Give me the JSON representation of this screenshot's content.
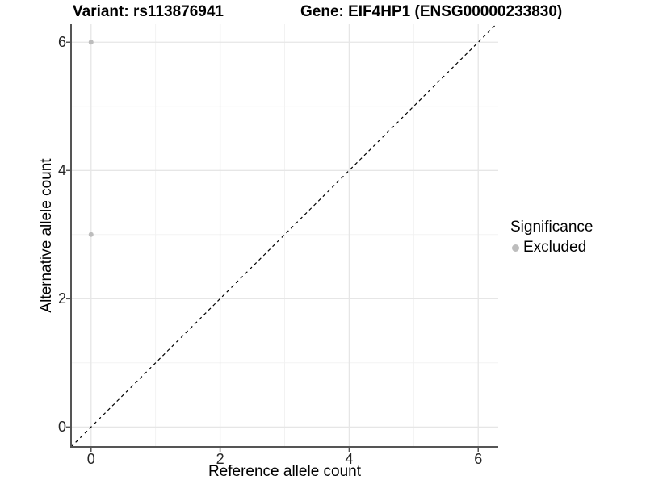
{
  "figure": {
    "title_left": "Variant: rs113876941",
    "title_right": "Gene: EIF4HP1 (ENSG00000233830)"
  },
  "chart_data": {
    "type": "scatter",
    "title": "Variant: rs113876941   Gene: EIF4HP1 (ENSG00000233830)",
    "xlabel": "Reference allele count",
    "ylabel": "Alternative allele count",
    "xlim": [
      -0.31,
      6.31
    ],
    "ylim": [
      -0.31,
      6.28
    ],
    "x_ticks": [
      0,
      2,
      4,
      6
    ],
    "y_ticks": [
      0,
      2,
      4,
      6
    ],
    "x_minor_ticks": [
      1,
      3,
      5
    ],
    "y_minor_ticks": [
      1,
      3,
      5
    ],
    "grid": true,
    "series": [
      {
        "name": "Excluded",
        "color": "#bdbdbd",
        "point_radius": 3,
        "points": [
          {
            "x": 0,
            "y": 6
          },
          {
            "x": 0,
            "y": 3
          }
        ]
      }
    ],
    "reference_line": {
      "kind": "identity",
      "style": "dashed",
      "color": "#000000"
    },
    "legend": {
      "title": "Significance",
      "position": "right",
      "items": [
        {
          "label": "Excluded",
          "color": "#bdbdbd"
        }
      ]
    }
  },
  "colors": {
    "background": "#ffffff",
    "grid_major": "#e6e6e6",
    "grid_minor": "#f1f1f1",
    "axis_line": "#555555",
    "tick_mark": "#555555",
    "tick_text": "#262626",
    "point": "#bdbdbd"
  }
}
